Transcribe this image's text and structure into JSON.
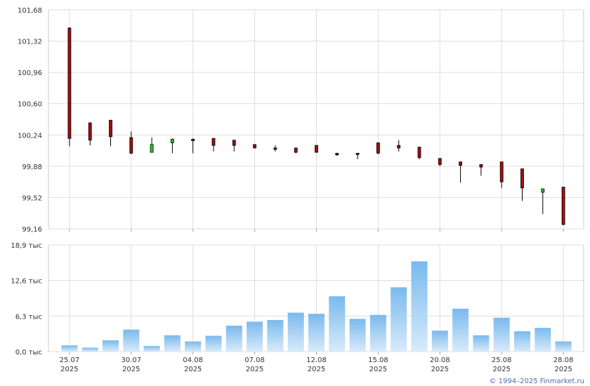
{
  "chart_data": [
    {
      "type": "candlestick",
      "y_ticks": [
        "101,68",
        "101,32",
        "100,96",
        "100,60",
        "100,24",
        "99,88",
        "99,52",
        "99,16"
      ],
      "ylim": [
        99.16,
        101.68
      ],
      "x_ticks": [
        {
          "day": "25.07",
          "year": "2025"
        },
        {
          "day": "30.07",
          "year": "2025"
        },
        {
          "day": "04.08",
          "year": "2025"
        },
        {
          "day": "07.08",
          "year": "2025"
        },
        {
          "day": "12.08",
          "year": "2025"
        },
        {
          "day": "15.08",
          "year": "2025"
        },
        {
          "day": "20.08",
          "year": "2025"
        },
        {
          "day": "25.08",
          "year": "2025"
        },
        {
          "day": "28.08",
          "year": "2025"
        }
      ],
      "candles": [
        {
          "date": "25.07.2025",
          "open": 101.47,
          "high": 101.48,
          "low": 100.11,
          "close": 100.2
        },
        {
          "date": "28.07.2025",
          "open": 100.38,
          "high": 100.38,
          "low": 100.12,
          "close": 100.18
        },
        {
          "date": "29.07.2025",
          "open": 100.41,
          "high": 100.41,
          "low": 100.11,
          "close": 100.22
        },
        {
          "date": "30.07.2025",
          "open": 100.21,
          "high": 100.28,
          "low": 100.02,
          "close": 100.03
        },
        {
          "date": "31.07.2025",
          "open": 100.04,
          "high": 100.21,
          "low": 100.04,
          "close": 100.13
        },
        {
          "date": "01.08.2025",
          "open": 100.15,
          "high": 100.2,
          "low": 100.03,
          "close": 100.19
        },
        {
          "date": "04.08.2025",
          "open": 100.19,
          "high": 100.2,
          "low": 100.03,
          "close": 100.18
        },
        {
          "date": "05.08.2025",
          "open": 100.2,
          "high": 100.2,
          "low": 100.05,
          "close": 100.12
        },
        {
          "date": "06.08.2025",
          "open": 100.18,
          "high": 100.18,
          "low": 100.05,
          "close": 100.12
        },
        {
          "date": "07.08.2025",
          "open": 100.13,
          "high": 100.13,
          "low": 100.09,
          "close": 100.09
        },
        {
          "date": "08.08.2025",
          "open": 100.09,
          "high": 100.12,
          "low": 100.05,
          "close": 100.08
        },
        {
          "date": "11.08.2025",
          "open": 100.09,
          "high": 100.09,
          "low": 100.03,
          "close": 100.04
        },
        {
          "date": "12.08.2025",
          "open": 100.12,
          "high": 100.12,
          "low": 100.04,
          "close": 100.04
        },
        {
          "date": "13.08.2025",
          "open": 100.03,
          "high": 100.03,
          "low": 100.0,
          "close": 100.01
        },
        {
          "date": "14.08.2025",
          "open": 100.03,
          "high": 100.03,
          "low": 99.96,
          "close": 100.02
        },
        {
          "date": "15.08.2025",
          "open": 100.15,
          "high": 100.15,
          "low": 100.02,
          "close": 100.03
        },
        {
          "date": "18.08.2025",
          "open": 100.12,
          "high": 100.18,
          "low": 100.05,
          "close": 100.09
        },
        {
          "date": "19.08.2025",
          "open": 100.1,
          "high": 100.1,
          "low": 99.96,
          "close": 99.98
        },
        {
          "date": "20.08.2025",
          "open": 99.97,
          "high": 99.97,
          "low": 99.88,
          "close": 99.9
        },
        {
          "date": "21.08.2025",
          "open": 99.93,
          "high": 99.93,
          "low": 99.69,
          "close": 99.89
        },
        {
          "date": "22.08.2025",
          "open": 99.9,
          "high": 99.9,
          "low": 99.77,
          "close": 99.87
        },
        {
          "date": "25.08.2025",
          "open": 99.93,
          "high": 99.93,
          "low": 99.63,
          "close": 99.7
        },
        {
          "date": "26.08.2025",
          "open": 99.85,
          "high": 99.85,
          "low": 99.48,
          "close": 99.63
        },
        {
          "date": "27.08.2025",
          "open": 99.58,
          "high": 99.62,
          "low": 99.33,
          "close": 99.62
        },
        {
          "date": "28.08.2025",
          "open": 99.64,
          "high": 99.64,
          "low": 99.2,
          "close": 99.21
        }
      ]
    },
    {
      "type": "bar",
      "y_ticks": [
        "18,9 тыс",
        "12,6 тыс",
        "6,3 тыс",
        "0,0 тыс"
      ],
      "ylim": [
        0,
        18.9
      ],
      "unit": "тыс",
      "values": [
        1.1,
        0.7,
        2.0,
        3.9,
        1.0,
        2.9,
        1.8,
        2.8,
        4.6,
        5.3,
        5.6,
        6.9,
        6.7,
        9.8,
        5.8,
        6.5,
        11.4,
        16.0,
        3.7,
        7.6,
        2.9,
        6.0,
        3.6,
        4.2,
        1.8
      ]
    }
  ],
  "credit": "© 1994–2025 Finmarket.ru",
  "colors": {
    "up": "#22cc22",
    "down": "#a01010",
    "grid": "#dddddd",
    "bar_top": "#7ab9ed",
    "bar_bottom": "#d8ebfa"
  }
}
